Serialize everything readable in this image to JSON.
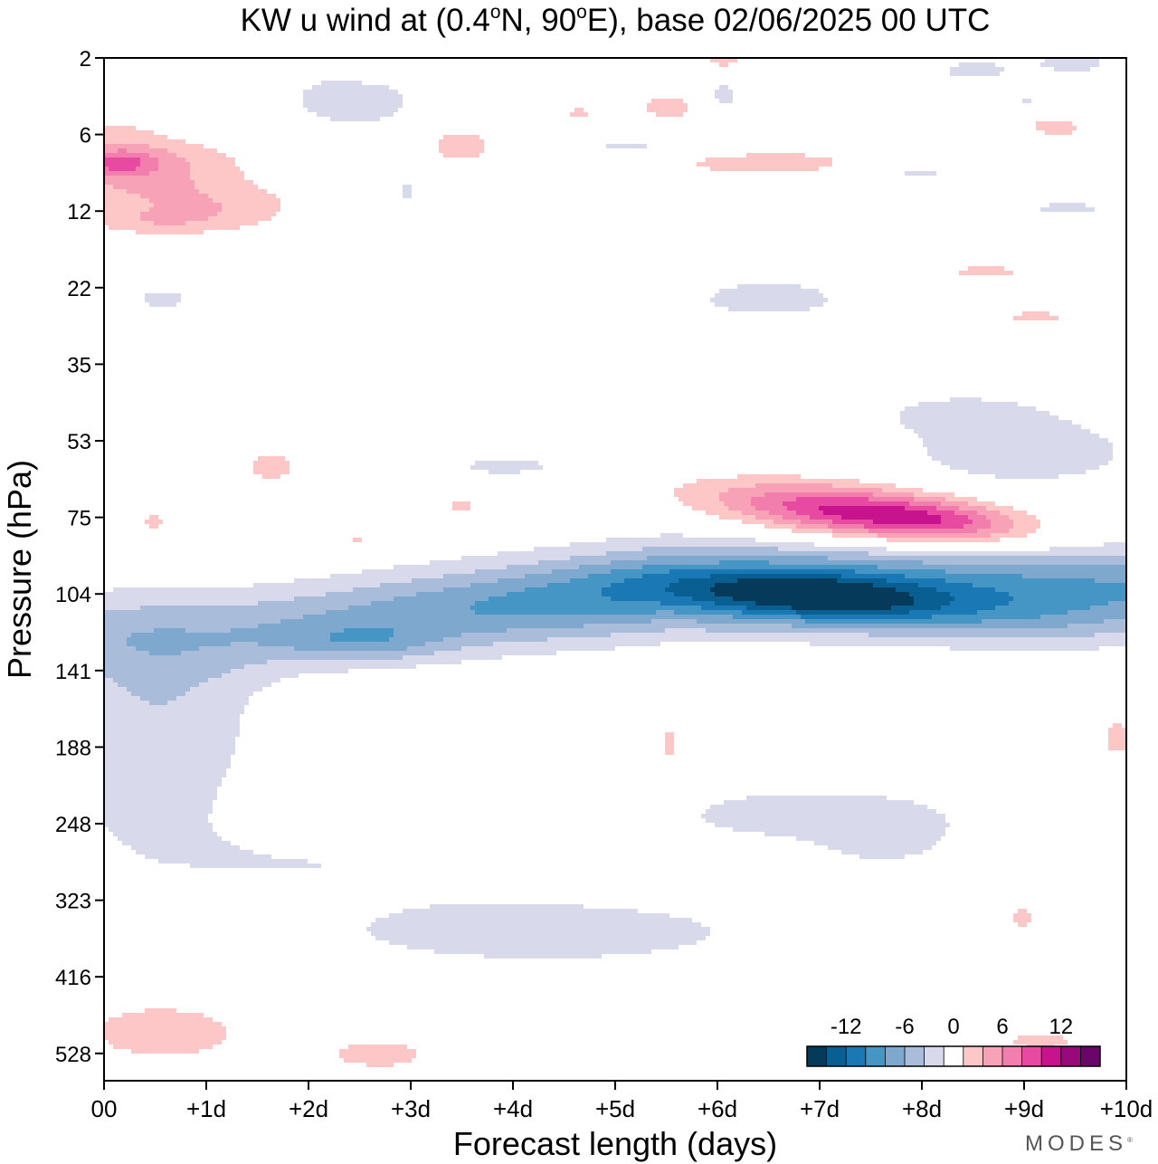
{
  "chart_data": {
    "type": "heatmap",
    "title_prefix": "KW u wind at (0.4",
    "title_deg_n": "o",
    "title_mid": "N, 90",
    "title_deg_e": "o",
    "title_suffix": "E),  base 02/06/2025  00 UTC",
    "xlabel": "Forecast length (days)",
    "ylabel": "Pressure (hPa)",
    "x_ticks": [
      "00",
      "+1d",
      "+2d",
      "+3d",
      "+4d",
      "+5d",
      "+6d",
      "+7d",
      "+8d",
      "+9d",
      "+10d"
    ],
    "xlim_days": [
      0,
      10
    ],
    "y_ticks": [
      "2",
      "6",
      "12",
      "22",
      "35",
      "53",
      "75",
      "104",
      "141",
      "188",
      "248",
      "323",
      "416",
      "528"
    ],
    "colorbar": {
      "tick_labels": [
        "-12",
        "-6",
        "0",
        "6",
        "12"
      ],
      "tick_values": [
        -12,
        -6,
        0,
        6,
        12
      ],
      "levels": [
        -16,
        -14,
        -12,
        -10,
        -8,
        -6,
        -4,
        -2,
        2,
        4,
        6,
        8,
        10,
        12,
        14,
        16
      ],
      "colors": [
        "#053a5a",
        "#0a5f92",
        "#1a78b4",
        "#4696c5",
        "#7fa8cf",
        "#a9bcda",
        "#d8d9ea",
        "#ffffff",
        "#fcc7c6",
        "#f7a2b6",
        "#f27eae",
        "#e84aa2",
        "#c8138f",
        "#98097c",
        "#6a0669"
      ]
    },
    "features": [
      {
        "desc": "easterly jet core",
        "center_day": 7.2,
        "center_hpa": 110,
        "min_u": -16
      },
      {
        "desc": "westerly core",
        "center_day": 7.8,
        "center_hpa": 76,
        "max_u": 13
      },
      {
        "desc": "lower easterly",
        "center_day": 3.5,
        "center_hpa": 300,
        "min_u": -6
      }
    ]
  },
  "branding": {
    "name": "MODES",
    "mark": "®"
  }
}
